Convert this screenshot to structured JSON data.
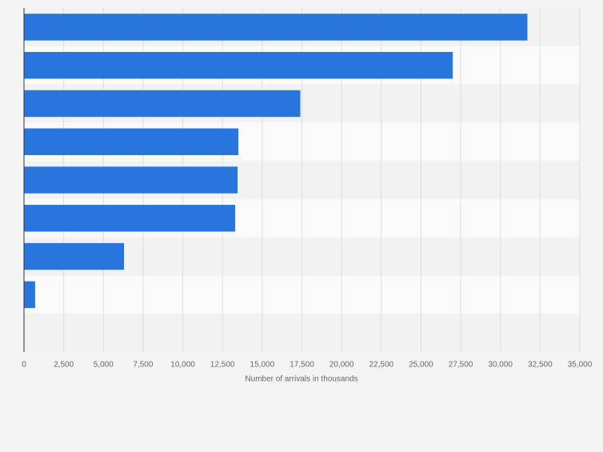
{
  "chart_data": {
    "type": "bar",
    "orientation": "horizontal",
    "x_label": "Number of arrivals in thousands",
    "categories": [
      null,
      null,
      null,
      null,
      null,
      null,
      null,
      null,
      null
    ],
    "values": [
      31700,
      27000,
      17400,
      13500,
      13450,
      13300,
      6300,
      700,
      null
    ],
    "color": "#2876dd",
    "xlim": [
      0,
      35000
    ],
    "xticks": [
      0,
      {
        "value": 2500,
        "label": "2,500"
      },
      {
        "value": 5000,
        "label": "5,000"
      },
      {
        "value": 7500,
        "label": "7,500"
      },
      {
        "value": 10000,
        "label": "10,000"
      },
      {
        "value": 12500,
        "label": "12,500"
      },
      {
        "value": 15000,
        "label": "15,000"
      },
      {
        "value": 17500,
        "label": "17,500"
      },
      {
        "value": 20000,
        "label": "20,000"
      },
      {
        "value": 22500,
        "label": "22,500"
      },
      {
        "value": 25000,
        "label": "25,000"
      },
      {
        "value": 27500,
        "label": "27,500"
      },
      {
        "value": 30000,
        "label": "30,000"
      },
      {
        "value": 32500,
        "label": "32,500"
      },
      {
        "value": 35000,
        "label": "35,000"
      }
    ],
    "grid": true
  }
}
